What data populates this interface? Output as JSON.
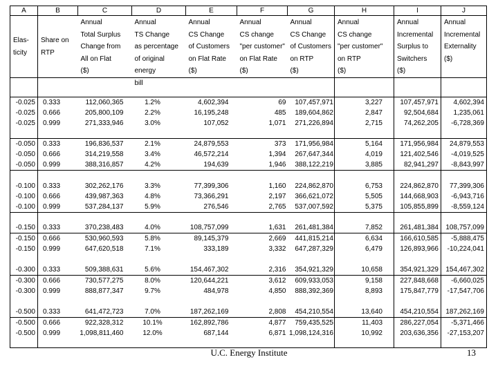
{
  "slide": {
    "footer_text": "U.C. Energy Institute",
    "page_number": "13"
  },
  "colors": {
    "background": "#ffffff",
    "text": "#000000",
    "gridline": "#000000"
  },
  "table": {
    "column_letters": [
      "A",
      "B",
      "C",
      "D",
      "E",
      "F",
      "G",
      "H",
      "I",
      "J"
    ],
    "column_headers": [
      "Elas-\nticity",
      "Share on\nRTP",
      "Annual\nTotal Surplus\nChange from\nAll on Flat\n($)",
      "Annual\nTS Change\nas percentage\nof original\nenergy",
      "Annual\nCS Change\nof Customers\non Flat Rate\n($)",
      "Annual\nCS change\n\"per customer\"\non Flat Rate\n($)",
      "Annual\nCS Change\nof Customers\non RTP\n($)",
      "Annual\nCS change\n\"per customer\"\non RTP\n($)",
      "Annual\nIncremental\nSurplus to\nSwitchers\n($)",
      "Annual\nIncremental\nExternality\n($)"
    ],
    "header_overflow_row": [
      "",
      "",
      "",
      "bill",
      "",
      "",
      "",
      "",
      "",
      ""
    ],
    "row_groups": [
      [
        [
          "-0.025",
          "0.333",
          "112,060,365",
          "1.2%",
          "4,602,394",
          "69",
          "107,457,971",
          "3,227",
          "107,457,971",
          "4,602,394"
        ],
        [
          "-0.025",
          "0.666",
          "205,800,109",
          "2.2%",
          "16,195,248",
          "485",
          "189,604,862",
          "2,847",
          "92,504,684",
          "1,235,061"
        ],
        [
          "-0.025",
          "0.999",
          "271,333,946",
          "3.0%",
          "107,052",
          "1,071",
          "271,226,894",
          "2,715",
          "74,262,205",
          "-6,728,369"
        ]
      ],
      [
        [
          "-0.050",
          "0.333",
          "196,836,537",
          "2.1%",
          "24,879,553",
          "373",
          "171,956,984",
          "5,164",
          "171,956,984",
          "24,879,553"
        ],
        [
          "-0.050",
          "0.666",
          "314,219,558",
          "3.4%",
          "46,572,214",
          "1,394",
          "267,647,344",
          "4,019",
          "121,402,546",
          "-4,019,525"
        ],
        [
          "-0.050",
          "0.999",
          "388,316,857",
          "4.2%",
          "194,639",
          "1,946",
          "388,122,219",
          "3,885",
          "82,941,297",
          "-8,843,997"
        ]
      ],
      [
        [
          "-0.100",
          "0.333",
          "302,262,176",
          "3.3%",
          "77,399,306",
          "1,160",
          "224,862,870",
          "6,753",
          "224,862,870",
          "77,399,306"
        ],
        [
          "-0.100",
          "0.666",
          "439,987,363",
          "4.8%",
          "73,366,291",
          "2,197",
          "366,621,072",
          "5,505",
          "144,668,903",
          "-6,943,716"
        ],
        [
          "-0.100",
          "0.999",
          "537,284,137",
          "5.9%",
          "276,546",
          "2,765",
          "537,007,592",
          "5,375",
          "105,855,899",
          "-8,559,124"
        ]
      ],
      [
        [
          "-0.150",
          "0.333",
          "370,238,483",
          "4.0%",
          "108,757,099",
          "1,631",
          "261,481,384",
          "7,852",
          "261,481,384",
          "108,757,099"
        ],
        [
          "-0.150",
          "0.666",
          "530,960,593",
          "5.8%",
          "89,145,379",
          "2,669",
          "441,815,214",
          "6,634",
          "166,610,585",
          "-5,888,475"
        ],
        [
          "-0.150",
          "0.999",
          "647,620,518",
          "7.1%",
          "333,189",
          "3,332",
          "647,287,329",
          "6,479",
          "126,893,966",
          "-10,224,041"
        ]
      ],
      [
        [
          "-0.300",
          "0.333",
          "509,388,631",
          "5.6%",
          "154,467,302",
          "2,316",
          "354,921,329",
          "10,658",
          "354,921,329",
          "154,467,302"
        ],
        [
          "-0.300",
          "0.666",
          "730,577,275",
          "8.0%",
          "120,644,221",
          "3,612",
          "609,933,053",
          "9,158",
          "227,848,668",
          "-6,660,025"
        ],
        [
          "-0.300",
          "0.999",
          "888,877,347",
          "9.7%",
          "484,978",
          "4,850",
          "888,392,369",
          "8,893",
          "175,847,779",
          "-17,547,706"
        ]
      ],
      [
        [
          "-0.500",
          "0.333",
          "641,472,723",
          "7.0%",
          "187,262,169",
          "2,808",
          "454,210,554",
          "13,640",
          "454,210,554",
          "187,262,169"
        ],
        [
          "-0.500",
          "0.666",
          "922,328,312",
          "10.1%",
          "162,892,786",
          "4,877",
          "759,435,525",
          "11,403",
          "286,227,054",
          "-5,371,466"
        ],
        [
          "-0.500",
          "0.999",
          "1,098,811,460",
          "12.0%",
          "687,144",
          "6,871",
          "1,098,124,316",
          "10,992",
          "203,636,356",
          "-27,153,207"
        ]
      ]
    ]
  }
}
